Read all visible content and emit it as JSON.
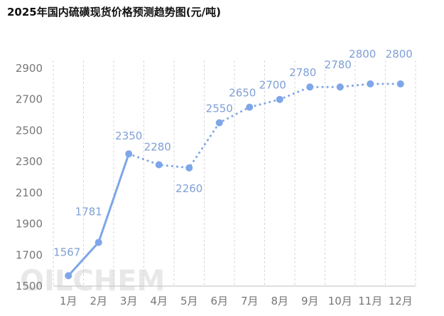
{
  "chart_data": {
    "type": "line",
    "title": "2025年国内硫磺现货价格预测趋势图(元/吨)",
    "categories": [
      "1月",
      "2月",
      "3月",
      "4月",
      "5月",
      "6月",
      "7月",
      "8月",
      "9月",
      "10月",
      "11月",
      "12月"
    ],
    "values": [
      1567,
      1781,
      2350,
      2280,
      2260,
      2550,
      2650,
      2700,
      2780,
      2780,
      2800,
      2800
    ],
    "actual_points": 3,
    "segments": [
      {
        "style": "solid",
        "from": 0,
        "to": 2
      },
      {
        "style": "dotted",
        "from": 2,
        "to": 11
      }
    ],
    "ylim": [
      1500,
      2950
    ],
    "yticks": [
      1500,
      1700,
      1900,
      2100,
      2300,
      2500,
      2700,
      2900
    ],
    "grid": "vertical-dashed",
    "legend": "none",
    "line_color": "#7ea6e8",
    "label_color": "#7f9fd6"
  },
  "watermark": "OILCHEM"
}
